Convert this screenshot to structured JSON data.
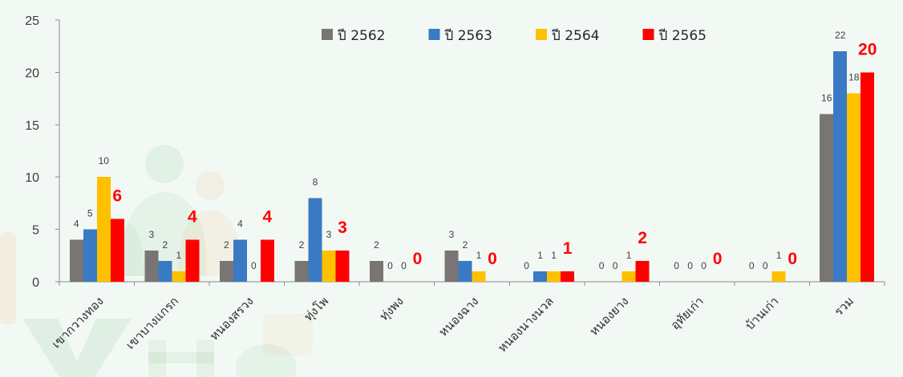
{
  "chart_data": {
    "type": "bar",
    "categories": [
      "เขากวางทอง",
      "เขาบางแกรก",
      "หนองสรวง",
      "ทุ่งโพ",
      "ทุ่งพง",
      "หนองฉาง",
      "หนองนางนวล",
      "หนองยาง",
      "อุทัยเก่า",
      "บ้านเก่า",
      "รวม"
    ],
    "series": [
      {
        "name": "ปี 2562",
        "color": "#787574",
        "values": [
          4,
          3,
          2,
          2,
          2,
          3,
          0,
          0,
          0,
          0,
          16
        ]
      },
      {
        "name": "ปี 2563",
        "color": "#3A7AC4",
        "values": [
          5,
          2,
          4,
          8,
          0,
          2,
          1,
          0,
          0,
          0,
          22
        ]
      },
      {
        "name": "ปี 2564",
        "color": "#FFC000",
        "values": [
          10,
          1,
          0,
          3,
          0,
          1,
          1,
          1,
          0,
          1,
          18
        ]
      },
      {
        "name": "ปี 2565",
        "color": "#FF0000",
        "values": [
          6,
          4,
          4,
          3,
          0,
          0,
          1,
          2,
          0,
          0,
          20
        ]
      }
    ],
    "ylim": [
      0,
      25
    ],
    "yticks": [
      0,
      5,
      10,
      15,
      20,
      25
    ],
    "grid": false,
    "legend": "top-center"
  }
}
